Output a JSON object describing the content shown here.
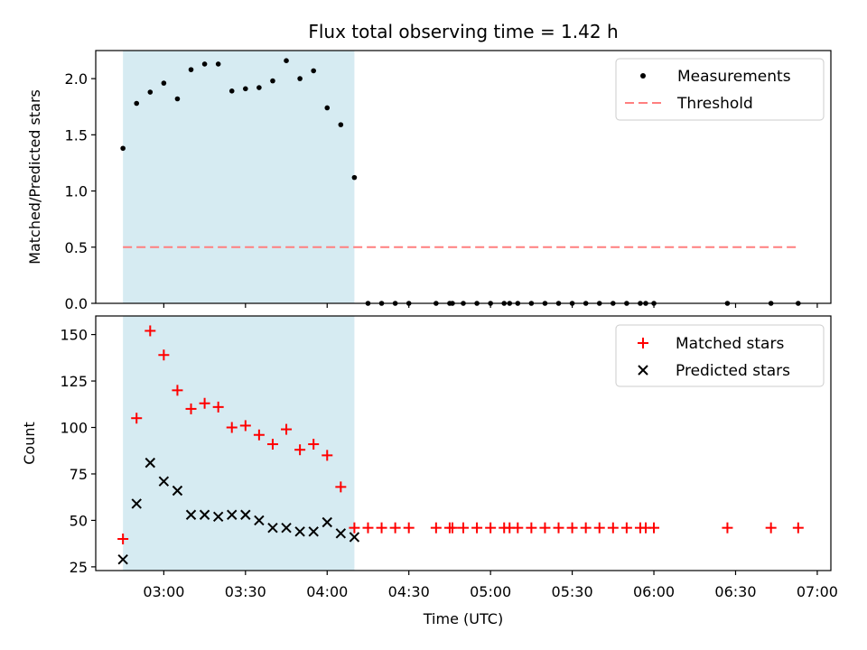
{
  "chart_data": [
    {
      "type": "scatter",
      "title": "Flux total observing time = 1.42 h",
      "xlabel": "",
      "ylabel": "Matched/Predicted stars",
      "ylim": [
        0,
        2.25
      ],
      "yticks": [
        0.0,
        0.5,
        1.0,
        1.5,
        2.0
      ],
      "ytick_labels": [
        "0.0",
        "0.5",
        "1.0",
        "1.5",
        "2.0"
      ],
      "shaded_span": {
        "start": "02:45",
        "end": "04:10",
        "color": "#add8e6"
      },
      "legend": {
        "position": "upper right",
        "entries": [
          "Measurements",
          "Threshold"
        ]
      },
      "series": [
        {
          "name": "Measurements",
          "marker": "dot",
          "color": "#000000",
          "x": [
            "02:45",
            "02:50",
            "02:55",
            "03:00",
            "03:05",
            "03:10",
            "03:15",
            "03:20",
            "03:25",
            "03:30",
            "03:35",
            "03:40",
            "03:45",
            "03:50",
            "03:55",
            "04:00",
            "04:05",
            "04:10",
            "04:15",
            "04:20",
            "04:25",
            "04:30",
            "04:40",
            "04:45",
            "04:46",
            "04:50",
            "04:55",
            "05:00",
            "05:05",
            "05:07",
            "05:10",
            "05:15",
            "05:20",
            "05:25",
            "05:30",
            "05:35",
            "05:40",
            "05:45",
            "05:50",
            "05:55",
            "05:57",
            "06:00",
            "06:27",
            "06:43",
            "06:53"
          ],
          "y": [
            1.38,
            1.78,
            1.88,
            1.96,
            1.82,
            2.08,
            2.13,
            2.13,
            1.89,
            1.91,
            1.92,
            1.98,
            2.16,
            2.0,
            2.07,
            1.74,
            1.59,
            1.12,
            0,
            0,
            0,
            0,
            0,
            0,
            0,
            0,
            0,
            0,
            0,
            0,
            0,
            0,
            0,
            0,
            0,
            0,
            0,
            0,
            0,
            0,
            0,
            0,
            0,
            0,
            0
          ]
        },
        {
          "name": "Threshold",
          "style": "dashed",
          "color": "#ff7f7f",
          "x": [
            "02:45",
            "06:53"
          ],
          "y": [
            0.5,
            0.5
          ]
        }
      ]
    },
    {
      "type": "scatter",
      "title": "",
      "xlabel": "Time (UTC)",
      "ylabel": "Count",
      "ylim": [
        23,
        160
      ],
      "yticks": [
        25,
        50,
        75,
        100,
        125,
        150
      ],
      "ytick_labels": [
        "25",
        "50",
        "75",
        "100",
        "125",
        "150"
      ],
      "xlim": [
        "02:35",
        "07:05"
      ],
      "xticks": [
        "03:00",
        "03:30",
        "04:00",
        "04:30",
        "05:00",
        "05:30",
        "06:00",
        "06:30",
        "07:00"
      ],
      "xtick_labels": [
        "03:00",
        "03:30",
        "04:00",
        "04:30",
        "05:00",
        "05:30",
        "06:00",
        "06:30",
        "07:00"
      ],
      "shaded_span": {
        "start": "02:45",
        "end": "04:10",
        "color": "#add8e6"
      },
      "legend": {
        "position": "upper right",
        "entries": [
          "Matched stars",
          "Predicted stars"
        ]
      },
      "series": [
        {
          "name": "Matched stars",
          "marker": "plus",
          "color": "#ff0000",
          "x": [
            "02:45",
            "02:50",
            "02:55",
            "03:00",
            "03:05",
            "03:10",
            "03:15",
            "03:20",
            "03:25",
            "03:30",
            "03:35",
            "03:40",
            "03:45",
            "03:50",
            "03:55",
            "04:00",
            "04:05",
            "04:10",
            "04:15",
            "04:20",
            "04:25",
            "04:30",
            "04:40",
            "04:45",
            "04:46",
            "04:50",
            "04:55",
            "05:00",
            "05:05",
            "05:07",
            "05:10",
            "05:15",
            "05:20",
            "05:25",
            "05:30",
            "05:35",
            "05:40",
            "05:45",
            "05:50",
            "05:55",
            "05:57",
            "06:00",
            "06:27",
            "06:43",
            "06:53"
          ],
          "y": [
            40,
            105,
            152,
            139,
            120,
            110,
            113,
            111,
            100,
            101,
            96,
            91,
            99,
            88,
            91,
            85,
            68,
            46,
            46,
            46,
            46,
            46,
            46,
            46,
            46,
            46,
            46,
            46,
            46,
            46,
            46,
            46,
            46,
            46,
            46,
            46,
            46,
            46,
            46,
            46,
            46,
            46,
            46,
            46,
            46
          ]
        },
        {
          "name": "Predicted stars",
          "marker": "x",
          "color": "#000000",
          "x": [
            "02:45",
            "02:50",
            "02:55",
            "03:00",
            "03:05",
            "03:10",
            "03:15",
            "03:20",
            "03:25",
            "03:30",
            "03:35",
            "03:40",
            "03:45",
            "03:50",
            "03:55",
            "04:00",
            "04:05",
            "04:10"
          ],
          "y": [
            29,
            59,
            81,
            71,
            66,
            53,
            53,
            52,
            53,
            53,
            50,
            46,
            46,
            44,
            44,
            49,
            43,
            41
          ]
        }
      ]
    }
  ]
}
